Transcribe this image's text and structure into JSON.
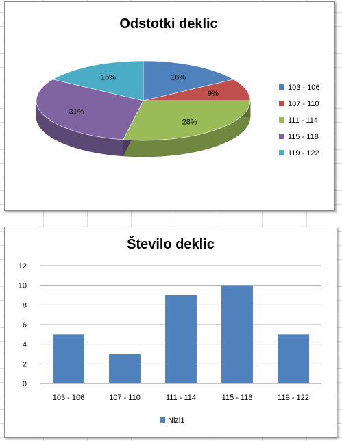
{
  "chart_data": [
    {
      "type": "pie",
      "title": "Odstotki deklic",
      "categories": [
        "103 - 106",
        "107 - 110",
        "111 - 114",
        "115 - 118",
        "119 - 122"
      ],
      "values": [
        16,
        9,
        28,
        31,
        16
      ],
      "value_labels": [
        "16%",
        "9%",
        "28%",
        "31%",
        "16%"
      ],
      "colors": [
        "#4f81bd",
        "#c0504d",
        "#9bbb59",
        "#8064a2",
        "#4bacc6"
      ],
      "style": "3d",
      "legend_position": "right"
    },
    {
      "type": "bar",
      "title": "Število deklic",
      "categories": [
        "103 - 106",
        "107 - 110",
        "111 - 114",
        "115 - 118",
        "119 - 122"
      ],
      "series": [
        {
          "name": "Nizi1",
          "values": [
            5,
            3,
            9,
            10,
            5
          ]
        }
      ],
      "ylim": [
        0,
        12
      ],
      "yticks": [
        0,
        2,
        4,
        6,
        8,
        10,
        12
      ],
      "grid": true,
      "color": "#4f81bd",
      "legend_position": "bottom"
    }
  ]
}
